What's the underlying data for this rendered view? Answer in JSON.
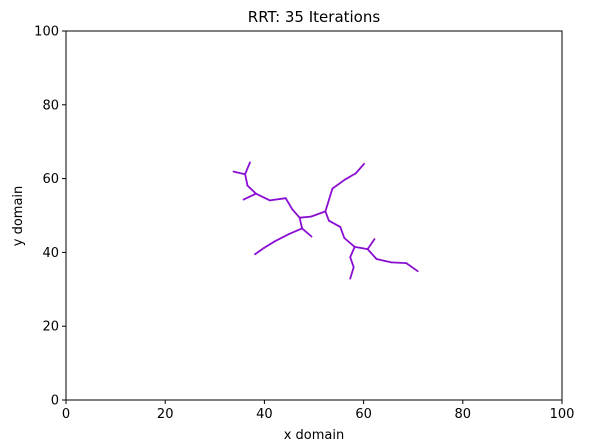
{
  "chart_data": {
    "type": "line",
    "title": "RRT: 35 Iterations",
    "xlabel": "x domain",
    "ylabel": "y domain",
    "xlim": [
      0,
      100
    ],
    "ylim": [
      0,
      100
    ],
    "xticks": [
      "0",
      "20",
      "40",
      "60",
      "80",
      "100"
    ],
    "yticks": [
      "0",
      "20",
      "40",
      "60",
      "80",
      "100"
    ],
    "grid": false,
    "edge_color": "#8a0ed2",
    "edges": [
      [
        [
          52.3,
          51.1
        ],
        [
          53.7,
          57.3
        ]
      ],
      [
        [
          53.7,
          57.3
        ],
        [
          56.2,
          59.7
        ]
      ],
      [
        [
          56.2,
          59.7
        ],
        [
          58.4,
          61.4
        ]
      ],
      [
        [
          58.4,
          61.4
        ],
        [
          60.1,
          64.0
        ]
      ],
      [
        [
          52.3,
          51.1
        ],
        [
          49.4,
          49.7
        ]
      ],
      [
        [
          49.4,
          49.7
        ],
        [
          47.1,
          49.4
        ]
      ],
      [
        [
          47.1,
          49.4
        ],
        [
          45.6,
          51.7
        ]
      ],
      [
        [
          45.6,
          51.7
        ],
        [
          44.3,
          54.7
        ]
      ],
      [
        [
          44.3,
          54.7
        ],
        [
          41.1,
          54.1
        ]
      ],
      [
        [
          41.1,
          54.1
        ],
        [
          38.3,
          55.9
        ]
      ],
      [
        [
          38.3,
          55.9
        ],
        [
          36.6,
          58.1
        ]
      ],
      [
        [
          36.6,
          58.1
        ],
        [
          36.1,
          61.2
        ]
      ],
      [
        [
          36.1,
          61.2
        ],
        [
          33.8,
          61.9
        ]
      ],
      [
        [
          36.1,
          61.2
        ],
        [
          37.1,
          64.4
        ]
      ],
      [
        [
          38.3,
          55.9
        ],
        [
          35.8,
          54.3
        ]
      ],
      [
        [
          47.1,
          49.4
        ],
        [
          47.6,
          46.5
        ]
      ],
      [
        [
          47.6,
          46.5
        ],
        [
          49.5,
          44.3
        ]
      ],
      [
        [
          47.6,
          46.5
        ],
        [
          45.0,
          45.0
        ]
      ],
      [
        [
          45.0,
          45.0
        ],
        [
          42.1,
          43.0
        ]
      ],
      [
        [
          42.1,
          43.0
        ],
        [
          39.9,
          41.2
        ]
      ],
      [
        [
          39.9,
          41.2
        ],
        [
          38.1,
          39.5
        ]
      ],
      [
        [
          52.3,
          51.1
        ],
        [
          53.0,
          48.6
        ]
      ],
      [
        [
          53.0,
          48.6
        ],
        [
          55.3,
          46.9
        ]
      ],
      [
        [
          55.3,
          46.9
        ],
        [
          56.1,
          43.9
        ]
      ],
      [
        [
          56.1,
          43.9
        ],
        [
          58.2,
          41.5
        ]
      ],
      [
        [
          58.2,
          41.5
        ],
        [
          57.3,
          38.7
        ]
      ],
      [
        [
          57.3,
          38.7
        ],
        [
          58.0,
          36.0
        ]
      ],
      [
        [
          58.0,
          36.0
        ],
        [
          57.3,
          32.9
        ]
      ],
      [
        [
          58.2,
          41.5
        ],
        [
          60.8,
          40.9
        ]
      ],
      [
        [
          60.8,
          40.9
        ],
        [
          62.2,
          43.6
        ]
      ],
      [
        [
          60.8,
          40.9
        ],
        [
          62.6,
          38.2
        ]
      ],
      [
        [
          62.6,
          38.2
        ],
        [
          65.6,
          37.3
        ]
      ],
      [
        [
          65.6,
          37.3
        ],
        [
          68.6,
          37.1
        ]
      ],
      [
        [
          68.6,
          37.1
        ],
        [
          70.9,
          34.9
        ]
      ]
    ]
  }
}
